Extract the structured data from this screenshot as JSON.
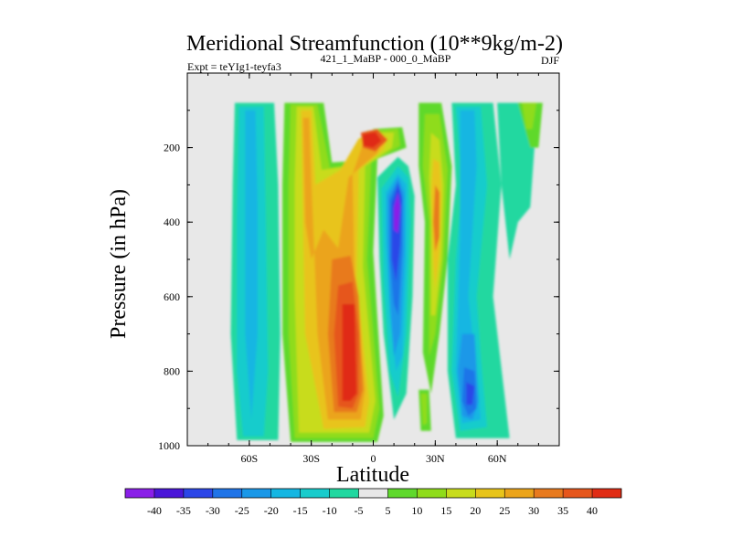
{
  "chart_data": {
    "type": "heatmap",
    "title": "Meridional Streamfunction (10**9kg/m-2)",
    "subtitle_left": "Expt = teYIg1-teyfa3",
    "subtitle_center": "421_1_MaBP - 000_0_MaBP",
    "subtitle_right": "DJF",
    "xlabel": "Latitude",
    "ylabel": "Pressure (in hPa)",
    "xlim": [
      -90,
      90
    ],
    "ylim": [
      1000,
      0
    ],
    "x_ticks": [
      {
        "value": -60,
        "label": "60S"
      },
      {
        "value": -30,
        "label": "30S"
      },
      {
        "value": 0,
        "label": "0"
      },
      {
        "value": 30,
        "label": "30N"
      },
      {
        "value": 60,
        "label": "60N"
      }
    ],
    "y_ticks": [
      {
        "value": 200,
        "label": "200"
      },
      {
        "value": 400,
        "label": "400"
      },
      {
        "value": 600,
        "label": "600"
      },
      {
        "value": 800,
        "label": "800"
      },
      {
        "value": 1000,
        "label": "1000"
      }
    ],
    "colorbar": {
      "levels": [
        -40,
        -35,
        -30,
        -25,
        -20,
        -15,
        -10,
        -5,
        5,
        10,
        15,
        20,
        25,
        30,
        35,
        40
      ],
      "colors": [
        "#8a1fe8",
        "#4a16d8",
        "#2c46e8",
        "#1f74e8",
        "#1a98e8",
        "#15b6e2",
        "#18cccc",
        "#20d8a0",
        "#e8e8e8",
        "#5fd92c",
        "#8fdc1a",
        "#c8dc1c",
        "#e8c41a",
        "#eba41a",
        "#e87a1e",
        "#e6561c",
        "#e02c14"
      ]
    },
    "features": [
      {
        "name": "SH subtropical positive cell",
        "lat_range": [
          -40,
          -22
        ],
        "p_range": [
          70,
          980
        ],
        "value_range": [
          15,
          30
        ]
      },
      {
        "name": "Equatorial positive cell",
        "lat_range": [
          -25,
          0
        ],
        "p_range": [
          150,
          970
        ],
        "peak_value": 40
      },
      {
        "name": "Upper equatorial maximum",
        "lat_range": [
          -5,
          15
        ],
        "p_range": [
          140,
          220
        ],
        "peak_value": 40
      },
      {
        "name": "NH tropical negative cell",
        "lat_range": [
          5,
          20
        ],
        "p_range": [
          250,
          850
        ],
        "peak_value": -40
      },
      {
        "name": "NH subtropical positive band",
        "lat_range": [
          28,
          36
        ],
        "p_range": [
          150,
          650
        ],
        "peak_value": 30
      },
      {
        "name": "SH mid-latitude negative band",
        "lat_range": [
          -65,
          -55
        ],
        "p_range": [
          70,
          980
        ],
        "value_range": [
          -25,
          -10
        ]
      },
      {
        "name": "NH mid-latitude negative cell",
        "lat_range": [
          38,
          55
        ],
        "p_range": [
          700,
          950
        ],
        "peak_value": -30
      },
      {
        "name": "NH high-latitude positive band",
        "lat_range": [
          70,
          80
        ],
        "p_range": [
          0,
          200
        ],
        "value_range": [
          5,
          10
        ]
      }
    ]
  }
}
